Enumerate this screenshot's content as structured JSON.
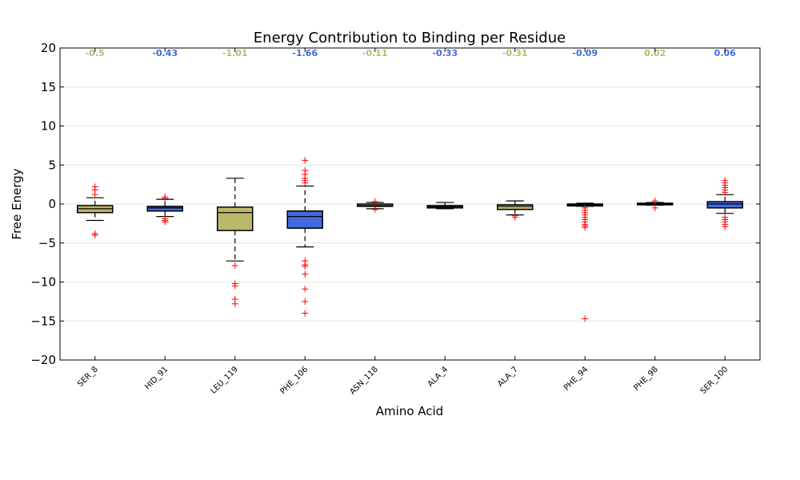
{
  "chart_data": {
    "type": "box",
    "title": "Energy Contribution to Binding per Residue",
    "xlabel": "Amino Acid",
    "ylabel": "Free Energy",
    "ylim": [
      -20,
      20
    ],
    "yticks": [
      "20",
      "15",
      "10",
      "5",
      "0",
      "−5",
      "−10",
      "−15",
      "−20"
    ],
    "ytick_values": [
      20,
      15,
      10,
      5,
      0,
      -5,
      -10,
      -15,
      -20
    ],
    "grid": "horizontal",
    "colors": {
      "olive": "#BDB76B",
      "blue": "#4169E1",
      "outlier": "#FF0000",
      "label_olive": "#BDB76B",
      "label_blue": "#4169E1"
    },
    "categories": [
      "SER_8",
      "HID_91",
      "LEU_119",
      "PHE_106",
      "ASN_118",
      "ALA_4",
      "ALA_7",
      "PHE_94",
      "PHE_98",
      "SER_100"
    ],
    "mean_labels": [
      "-0.5",
      "-0.43",
      "-1.01",
      "-1.66",
      "-0.11",
      "-0.33",
      "-0.31",
      "-0.09",
      "0.02",
      "0.06"
    ],
    "boxes": [
      {
        "name": "SER_8",
        "color": "olive",
        "whisker_low": -2.1,
        "q1": -1.1,
        "median": -0.6,
        "q3": -0.2,
        "whisker_high": 0.8,
        "outliers": [
          2.2,
          1.8,
          1.2,
          -3.8,
          -4.0
        ]
      },
      {
        "name": "HID_91",
        "color": "blue",
        "whisker_low": -1.6,
        "q1": -0.9,
        "median": -0.5,
        "q3": -0.3,
        "whisker_high": 0.6,
        "outliers": [
          0.9,
          0.7,
          -1.9,
          -2.1,
          -2.3
        ]
      },
      {
        "name": "LEU_119",
        "color": "olive",
        "whisker_low": -7.3,
        "q1": -3.4,
        "median": -1.1,
        "q3": -0.4,
        "whisker_high": 3.3,
        "outliers": [
          -7.9,
          -10.2,
          -10.5,
          -12.2,
          -12.8
        ]
      },
      {
        "name": "PHE_106",
        "color": "blue",
        "whisker_low": -5.5,
        "q1": -3.1,
        "median": -1.6,
        "q3": -0.9,
        "whisker_high": 2.3,
        "outliers": [
          5.6,
          4.3,
          3.8,
          3.3,
          3.0,
          2.7,
          -7.3,
          -7.8,
          -8.0,
          -9.0,
          -10.9,
          -12.5,
          -14.0
        ]
      },
      {
        "name": "ASN_118",
        "color": "olive",
        "whisker_low": -0.6,
        "q1": -0.3,
        "median": -0.2,
        "q3": 0.0,
        "whisker_high": 0.2,
        "outliers": [
          0.3,
          -0.7
        ]
      },
      {
        "name": "ALA_4",
        "color": "blue",
        "whisker_low": -0.6,
        "q1": -0.5,
        "median": -0.35,
        "q3": -0.2,
        "whisker_high": 0.2,
        "outliers": []
      },
      {
        "name": "ALA_7",
        "color": "olive",
        "whisker_low": -1.4,
        "q1": -0.7,
        "median": -0.3,
        "q3": -0.1,
        "whisker_high": 0.4,
        "outliers": [
          -1.5,
          -1.7
        ]
      },
      {
        "name": "PHE_94",
        "color": "blue",
        "whisker_low": -0.3,
        "q1": -0.25,
        "median": -0.1,
        "q3": 0.0,
        "whisker_high": 0.1,
        "outliers": [
          -0.5,
          -0.8,
          -1.1,
          -1.4,
          -1.7,
          -2.0,
          -2.3,
          -2.6,
          -2.8,
          -3.0,
          -14.7
        ]
      },
      {
        "name": "PHE_98",
        "color": "olive",
        "whisker_low": -0.15,
        "q1": -0.05,
        "median": 0.0,
        "q3": 0.1,
        "whisker_high": 0.2,
        "outliers": [
          0.4,
          -0.5
        ]
      },
      {
        "name": "SER_100",
        "color": "blue",
        "whisker_low": -1.2,
        "q1": -0.5,
        "median": 0.0,
        "q3": 0.3,
        "whisker_high": 1.2,
        "outliers": [
          3.0,
          2.7,
          2.4,
          2.1,
          1.8,
          1.5,
          -1.7,
          -2.0,
          -2.3,
          -2.6,
          -2.9
        ]
      }
    ]
  }
}
